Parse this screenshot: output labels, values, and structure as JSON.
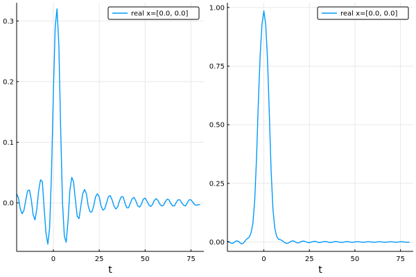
{
  "colors": {
    "series": "#009AFA",
    "grid": "#E8E8E8",
    "axis": "#000000",
    "background": "#FFFFFF"
  },
  "chart_data": [
    {
      "type": "line",
      "title": "",
      "xlabel": "t",
      "ylabel": "",
      "xlim": [
        -20,
        82
      ],
      "ylim": [
        -0.08,
        0.33
      ],
      "xticks": [
        0,
        25,
        50,
        75
      ],
      "xtick_labels": [
        "0",
        "25",
        "50",
        "75"
      ],
      "yticks": [
        0.0,
        0.1,
        0.2,
        0.3
      ],
      "ytick_labels": [
        "0.0",
        "0.1",
        "0.2",
        "0.3"
      ],
      "grid": true,
      "legend_position": "top-right",
      "series": [
        {
          "name": "real x=[0.0, 0.0]",
          "x": [
            -20,
            -19,
            -18,
            -17,
            -16,
            -15,
            -14,
            -13,
            -12,
            -11,
            -10,
            -9,
            -8,
            -7,
            -6,
            -5,
            -4,
            -3,
            -2,
            -1,
            0,
            1,
            2,
            3,
            4,
            5,
            6,
            7,
            8,
            9,
            10,
            11,
            12,
            13,
            14,
            15,
            16,
            17,
            18,
            19,
            20,
            21,
            22,
            23,
            24,
            25,
            26,
            27,
            28,
            29,
            30,
            31,
            32,
            33,
            34,
            35,
            36,
            37,
            38,
            39,
            40,
            41,
            42,
            43,
            44,
            45,
            46,
            47,
            48,
            49,
            50,
            51,
            52,
            53,
            54,
            55,
            56,
            57,
            58,
            59,
            60,
            61,
            62,
            63,
            64,
            65,
            66,
            67,
            68,
            69,
            70,
            71,
            72,
            73,
            74,
            75,
            76,
            77,
            78,
            79,
            80
          ],
          "y": [
            0.015,
            0.008,
            -0.01,
            -0.018,
            -0.012,
            0.005,
            0.02,
            0.021,
            0.005,
            -0.02,
            -0.028,
            -0.01,
            0.02,
            0.038,
            0.035,
            -0.01,
            -0.05,
            -0.068,
            -0.04,
            0.05,
            0.18,
            0.29,
            0.32,
            0.26,
            0.12,
            0.0,
            -0.055,
            -0.065,
            -0.03,
            0.02,
            0.042,
            0.035,
            0.005,
            -0.022,
            -0.026,
            -0.005,
            0.015,
            0.022,
            0.015,
            -0.005,
            -0.015,
            -0.015,
            -0.005,
            0.01,
            0.015,
            0.01,
            -0.005,
            -0.012,
            -0.01,
            0.0,
            0.01,
            0.012,
            0.005,
            -0.005,
            -0.01,
            -0.007,
            0.003,
            0.01,
            0.01,
            0.0,
            -0.008,
            -0.008,
            0.0,
            0.007,
            0.009,
            0.003,
            -0.005,
            -0.007,
            -0.002,
            0.006,
            0.008,
            0.003,
            -0.003,
            -0.006,
            -0.003,
            0.004,
            0.007,
            0.004,
            -0.002,
            -0.005,
            -0.004,
            0.002,
            0.006,
            0.005,
            -0.001,
            -0.005,
            -0.005,
            0.001,
            0.005,
            0.005,
            0.0,
            -0.004,
            -0.005,
            0.0,
            0.005,
            0.005,
            0.001,
            -0.003,
            -0.004,
            -0.003,
            -0.003
          ]
        }
      ]
    },
    {
      "type": "line",
      "title": "",
      "xlabel": "t",
      "ylabel": "",
      "xlim": [
        -20,
        82
      ],
      "ylim": [
        -0.04,
        1.02
      ],
      "xticks": [
        0,
        25,
        50,
        75
      ],
      "xtick_labels": [
        "0",
        "25",
        "50",
        "75"
      ],
      "yticks": [
        0.0,
        0.25,
        0.5,
        0.75,
        1.0
      ],
      "ytick_labels": [
        "0.00",
        "0.25",
        "0.50",
        "0.75",
        "1.00"
      ],
      "grid": true,
      "legend_position": "top-right",
      "series": [
        {
          "name": "real x=[0.0, 0.0]",
          "x": [
            -20,
            -19,
            -18,
            -17,
            -16,
            -15,
            -14,
            -13,
            -12,
            -11,
            -10,
            -9,
            -8,
            -7,
            -6,
            -5,
            -4,
            -3,
            -2,
            -1,
            0,
            1,
            2,
            3,
            4,
            5,
            6,
            7,
            8,
            9,
            10,
            11,
            12,
            13,
            14,
            15,
            16,
            17,
            18,
            19,
            20,
            21,
            22,
            23,
            24,
            25,
            26,
            27,
            28,
            29,
            30,
            31,
            32,
            33,
            34,
            35,
            36,
            37,
            38,
            39,
            40,
            41,
            42,
            43,
            44,
            45,
            46,
            47,
            48,
            49,
            50,
            51,
            52,
            53,
            54,
            55,
            56,
            57,
            58,
            59,
            60,
            61,
            62,
            63,
            64,
            65,
            66,
            67,
            68,
            69,
            70,
            71,
            72,
            73,
            74,
            75,
            76,
            77,
            78,
            79,
            80
          ],
          "y": [
            0.003,
            0.0,
            -0.005,
            -0.006,
            0.0,
            0.005,
            0.003,
            -0.004,
            -0.008,
            -0.003,
            0.008,
            0.015,
            0.02,
            0.04,
            0.08,
            0.18,
            0.36,
            0.6,
            0.8,
            0.93,
            0.985,
            0.93,
            0.78,
            0.55,
            0.3,
            0.14,
            0.06,
            0.025,
            0.012,
            0.01,
            0.006,
            0.0,
            -0.005,
            -0.006,
            -0.002,
            0.003,
            0.005,
            0.002,
            -0.003,
            -0.004,
            0.0,
            0.003,
            0.004,
            0.001,
            -0.002,
            -0.003,
            0.0,
            0.002,
            0.003,
            0.001,
            -0.002,
            -0.002,
            0.0,
            0.002,
            0.002,
            0.0,
            -0.002,
            -0.002,
            0.0,
            0.002,
            0.002,
            0.0,
            -0.001,
            -0.002,
            0.0,
            0.001,
            0.002,
            0.0,
            -0.001,
            -0.001,
            0.0,
            0.001,
            0.001,
            0.0,
            -0.001,
            -0.001,
            0.0,
            0.001,
            0.001,
            0.0,
            -0.001,
            -0.001,
            0.0,
            0.001,
            0.001,
            0.0,
            -0.001,
            -0.001,
            0.0,
            0.001,
            0.001,
            0.0,
            -0.001,
            -0.001,
            0.0,
            0.001,
            0.001,
            0.0,
            -0.001,
            -0.001,
            -0.001
          ]
        }
      ]
    }
  ]
}
